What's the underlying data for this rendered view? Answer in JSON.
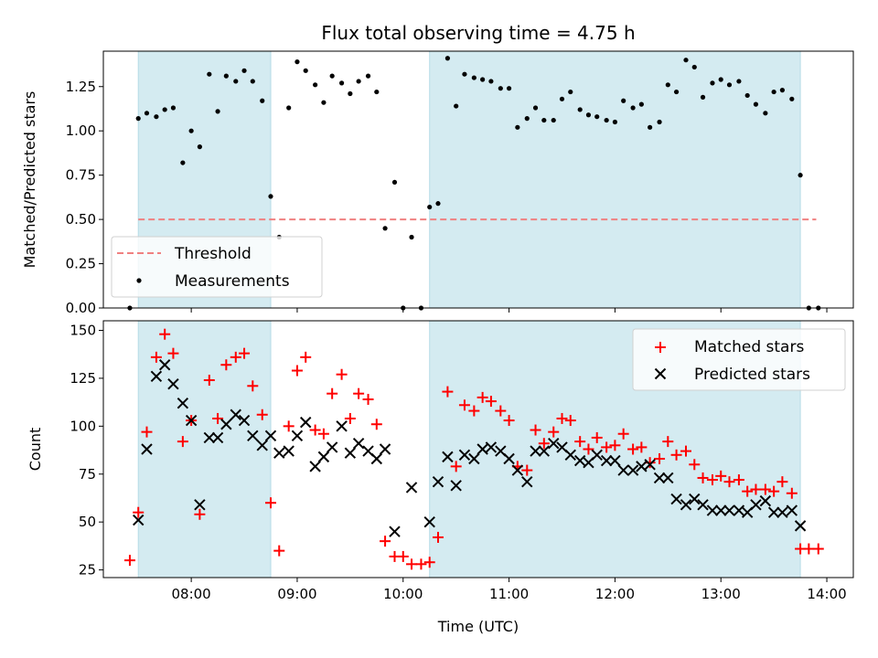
{
  "chart_data": [
    {
      "type": "scatter",
      "title": "Flux total observing time = 4.75 h",
      "ylabel": "Matched/Predicted stars",
      "ylim": [
        0,
        1.45
      ],
      "yticks": [
        "0.00",
        "0.25",
        "0.50",
        "0.75",
        "1.00",
        "1.25"
      ],
      "ytick_values": [
        0,
        0.25,
        0.5,
        0.75,
        1.0,
        1.25
      ],
      "xlim": [
        7.17,
        14.25
      ],
      "shaded_spans": [
        [
          7.5,
          8.75
        ],
        [
          10.25,
          13.75
        ]
      ],
      "threshold": {
        "name": "Threshold",
        "value": 0.5,
        "x_range": [
          7.5,
          13.9
        ],
        "color": "#f08080"
      },
      "legend": {
        "position": "lower-left",
        "entries": [
          "Threshold",
          "Measurements"
        ]
      },
      "series": [
        {
          "name": "Measurements",
          "color": "#000000",
          "x": [
            7.42,
            7.5,
            7.58,
            7.67,
            7.75,
            7.83,
            7.92,
            8.0,
            8.08,
            8.17,
            8.25,
            8.33,
            8.42,
            8.5,
            8.58,
            8.67,
            8.75,
            8.83,
            8.92,
            9.0,
            9.08,
            9.17,
            9.25,
            9.33,
            9.42,
            9.5,
            9.58,
            9.67,
            9.75,
            9.83,
            9.92,
            10.0,
            10.08,
            10.17,
            10.25,
            10.33,
            10.42,
            10.5,
            10.58,
            10.67,
            10.75,
            10.83,
            10.92,
            11.0,
            11.08,
            11.17,
            11.25,
            11.33,
            11.42,
            11.5,
            11.58,
            11.67,
            11.75,
            11.83,
            11.92,
            12.0,
            12.08,
            12.17,
            12.25,
            12.33,
            12.42,
            12.5,
            12.58,
            12.67,
            12.75,
            12.83,
            12.92,
            13.0,
            13.08,
            13.17,
            13.25,
            13.33,
            13.42,
            13.5,
            13.58,
            13.67,
            13.75,
            13.83,
            13.92
          ],
          "y": [
            0.0,
            1.07,
            1.1,
            1.08,
            1.12,
            1.13,
            0.82,
            1.0,
            0.91,
            1.32,
            1.11,
            1.31,
            1.28,
            1.34,
            1.28,
            1.17,
            0.63,
            0.4,
            1.13,
            1.39,
            1.34,
            1.26,
            1.16,
            1.31,
            1.27,
            1.21,
            1.28,
            1.31,
            1.22,
            0.45,
            0.71,
            0.0,
            0.4,
            0.0,
            0.57,
            0.59,
            1.41,
            1.14,
            1.32,
            1.3,
            1.29,
            1.28,
            1.24,
            1.24,
            1.02,
            1.07,
            1.13,
            1.06,
            1.06,
            1.18,
            1.22,
            1.12,
            1.09,
            1.08,
            1.06,
            1.05,
            1.17,
            1.13,
            1.15,
            1.02,
            1.05,
            1.26,
            1.22,
            1.4,
            1.36,
            1.19,
            1.27,
            1.29,
            1.26,
            1.28,
            1.2,
            1.15,
            1.1,
            1.22,
            1.23,
            1.18,
            0.75,
            0.0,
            0.0
          ]
        }
      ]
    },
    {
      "type": "scatter",
      "xlabel": "Time (UTC)",
      "ylabel": "Count",
      "ylim": [
        21,
        155
      ],
      "yticks": [
        "25",
        "50",
        "75",
        "100",
        "125",
        "150"
      ],
      "ytick_values": [
        25,
        50,
        75,
        100,
        125,
        150
      ],
      "xlim": [
        7.17,
        14.25
      ],
      "xticks": [
        "08:00",
        "09:00",
        "10:00",
        "11:00",
        "12:00",
        "13:00",
        "14:00"
      ],
      "xtick_values": [
        8,
        9,
        10,
        11,
        12,
        13,
        14
      ],
      "shaded_spans": [
        [
          7.5,
          8.75
        ],
        [
          10.25,
          13.75
        ]
      ],
      "legend": {
        "position": "upper-right",
        "entries": [
          "Matched stars",
          "Predicted stars"
        ]
      },
      "series": [
        {
          "name": "Matched stars",
          "marker": "plus",
          "color": "#ff0000",
          "x": [
            7.42,
            7.5,
            7.58,
            7.67,
            7.75,
            7.83,
            7.92,
            8.0,
            8.08,
            8.17,
            8.25,
            8.33,
            8.42,
            8.5,
            8.58,
            8.67,
            8.75,
            8.83,
            8.92,
            9.0,
            9.08,
            9.17,
            9.25,
            9.33,
            9.42,
            9.5,
            9.58,
            9.67,
            9.75,
            9.83,
            9.92,
            10.0,
            10.08,
            10.17,
            10.25,
            10.33,
            10.42,
            10.5,
            10.58,
            10.67,
            10.75,
            10.83,
            10.92,
            11.0,
            11.08,
            11.17,
            11.25,
            11.33,
            11.42,
            11.5,
            11.58,
            11.67,
            11.75,
            11.83,
            11.92,
            12.0,
            12.08,
            12.17,
            12.25,
            12.33,
            12.42,
            12.5,
            12.58,
            12.67,
            12.75,
            12.83,
            12.92,
            13.0,
            13.08,
            13.17,
            13.25,
            13.33,
            13.42,
            13.5,
            13.58,
            13.67,
            13.75,
            13.83,
            13.92
          ],
          "y": [
            30,
            55,
            97,
            136,
            148,
            138,
            92,
            103,
            54,
            124,
            104,
            132,
            136,
            138,
            121,
            106,
            60,
            35,
            100,
            129,
            136,
            98,
            96,
            117,
            127,
            104,
            117,
            114,
            101,
            40,
            32,
            32,
            28,
            28,
            29,
            42,
            118,
            79,
            111,
            108,
            115,
            113,
            108,
            103,
            79,
            77,
            98,
            91,
            97,
            104,
            103,
            92,
            88,
            94,
            89,
            90,
            96,
            88,
            89,
            81,
            83,
            92,
            85,
            87,
            80,
            73,
            72,
            74,
            71,
            72,
            66,
            67,
            67,
            66,
            71,
            65,
            36,
            36,
            36
          ]
        },
        {
          "name": "Predicted stars",
          "marker": "x",
          "color": "#000000",
          "x": [
            7.5,
            7.58,
            7.67,
            7.75,
            7.83,
            7.92,
            8.0,
            8.08,
            8.17,
            8.25,
            8.33,
            8.42,
            8.5,
            8.58,
            8.67,
            8.75,
            8.83,
            8.92,
            9.0,
            9.08,
            9.17,
            9.25,
            9.33,
            9.42,
            9.5,
            9.58,
            9.67,
            9.75,
            9.83,
            9.92,
            10.08,
            10.25,
            10.33,
            10.42,
            10.5,
            10.58,
            10.67,
            10.75,
            10.83,
            10.92,
            11.0,
            11.08,
            11.17,
            11.25,
            11.33,
            11.42,
            11.5,
            11.58,
            11.67,
            11.75,
            11.83,
            11.92,
            12.0,
            12.08,
            12.17,
            12.25,
            12.33,
            12.42,
            12.5,
            12.58,
            12.67,
            12.75,
            12.83,
            12.92,
            13.0,
            13.08,
            13.17,
            13.25,
            13.33,
            13.42,
            13.5,
            13.58,
            13.67,
            13.75
          ],
          "y": [
            51,
            88,
            126,
            132,
            122,
            112,
            103,
            59,
            94,
            94,
            101,
            106,
            103,
            95,
            90,
            95,
            86,
            87,
            95,
            102,
            79,
            84,
            89,
            100,
            86,
            91,
            87,
            83,
            88,
            45,
            68,
            50,
            71,
            84,
            69,
            85,
            83,
            88,
            89,
            87,
            83,
            77,
            71,
            87,
            87,
            91,
            89,
            85,
            82,
            81,
            85,
            82,
            82,
            77,
            77,
            79,
            80,
            73,
            73,
            62,
            59,
            62,
            59,
            56,
            56,
            56,
            56,
            55,
            59,
            61,
            55,
            55,
            56,
            48
          ]
        }
      ]
    }
  ]
}
